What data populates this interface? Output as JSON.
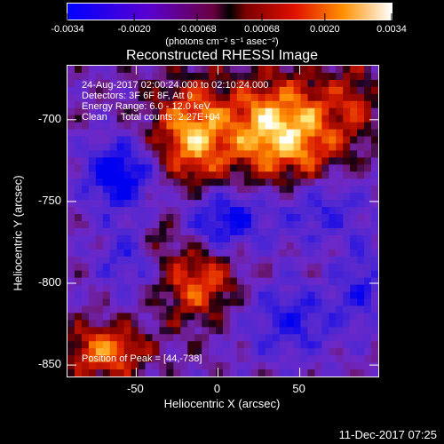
{
  "colorbar": {
    "tick_labels": [
      "-0.0034",
      "-0.0020",
      "-0.00068",
      "0.00068",
      "0.0020",
      "0.0034"
    ],
    "tick_values": [
      -0.0034,
      -0.002,
      -0.00068,
      0.00068,
      0.002,
      0.0034
    ],
    "range": [
      -0.0034,
      0.0034
    ],
    "units": "(photons cm⁻² s⁻¹ asec⁻²)",
    "colors": [
      "#0000ff",
      "#7a00c8",
      "#c80000",
      "#ff7f00",
      "#ffff7f",
      "#ffffff"
    ]
  },
  "title": "Reconstructed RHESSI Image",
  "info": {
    "line1": "24-Aug-2017 02:00:24.000 to 02:10:24.000",
    "line2": "Detectors: 3F 6F 8F, Att 0",
    "line3": "Energy Range: 6.0 - 12.0 keV",
    "line4": "Clean     Total counts: 2.27E+04",
    "peak": "Position of Peak = [44,-738]"
  },
  "axes": {
    "xlabel": "Heliocentric X (arcsec)",
    "ylabel": "Heliocentric Y (arcsec)",
    "xticks": [
      {
        "label": "-50",
        "value": -50
      },
      {
        "label": "0",
        "value": 0
      },
      {
        "label": "50",
        "value": 50
      }
    ],
    "yticks": [
      {
        "label": "-700",
        "value": -700
      },
      {
        "label": "-750",
        "value": -750
      },
      {
        "label": "-800",
        "value": -800
      },
      {
        "label": "-850",
        "value": -850
      }
    ],
    "xlim": [
      -92,
      98
    ],
    "ylim": [
      -857,
      -667
    ]
  },
  "footer": "11-Dec-2017 07:25"
}
